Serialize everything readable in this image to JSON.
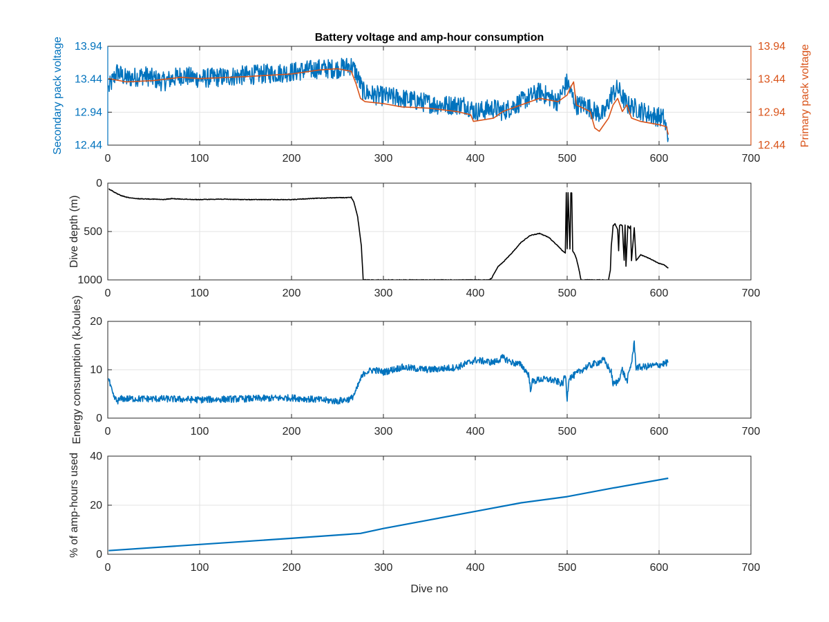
{
  "figure": {
    "title": "Battery voltage and amp-hour consumption",
    "xlabel": "Dive no"
  },
  "colors": {
    "secondary": "#0072BD",
    "primary": "#D95319",
    "depth": "#000000",
    "energy": "#0072BD",
    "amphours": "#0072BD",
    "grid": "#e3e3e3",
    "axis": "#262626"
  },
  "chart_data": [
    {
      "type": "line",
      "title": "Battery voltage and amp-hour consumption",
      "xlabel": "",
      "xlim": [
        0,
        700
      ],
      "xticks": [
        0,
        100,
        200,
        300,
        400,
        500,
        600,
        700
      ],
      "ylabel": "Secondary pack voltage",
      "ylim": [
        12.44,
        13.94
      ],
      "yticks": [
        12.44,
        12.94,
        13.44,
        13.94
      ],
      "ylabel_right": "Primary pack voltage",
      "ylim_right": [
        12.44,
        13.94
      ],
      "yticks_right": [
        12.44,
        12.94,
        13.44,
        13.94
      ],
      "grid": true,
      "series": [
        {
          "axis": "left",
          "noise": 0.15,
          "x": [
            1,
            10,
            20,
            40,
            60,
            80,
            100,
            150,
            200,
            230,
            250,
            265,
            270,
            278,
            290,
            320,
            360,
            390,
            400,
            420,
            430,
            450,
            470,
            490,
            500,
            505,
            510,
            520,
            530,
            540,
            548,
            555,
            565,
            575,
            590,
            605,
            610
          ],
          "y": [
            13.3,
            13.55,
            13.45,
            13.5,
            13.4,
            13.5,
            13.45,
            13.5,
            13.55,
            13.6,
            13.6,
            13.65,
            13.55,
            13.25,
            13.2,
            13.15,
            13.05,
            13.05,
            12.95,
            13.0,
            12.95,
            13.1,
            13.25,
            13.1,
            13.4,
            13.2,
            13.05,
            13.05,
            12.95,
            12.9,
            13.2,
            13.3,
            13.05,
            13.0,
            12.9,
            12.85,
            12.55
          ]
        },
        {
          "axis": "right",
          "noise": 0,
          "x": [
            1,
            20,
            50,
            80,
            100,
            150,
            200,
            230,
            250,
            265,
            270,
            275,
            280,
            300,
            320,
            350,
            380,
            395,
            398,
            420,
            430,
            450,
            470,
            490,
            500,
            503,
            507,
            510,
            525,
            530,
            535,
            545,
            550,
            555,
            560,
            565,
            570,
            580,
            600,
            608,
            610
          ],
          "y": [
            13.45,
            13.4,
            13.42,
            13.47,
            13.45,
            13.48,
            13.52,
            13.58,
            13.6,
            13.56,
            13.38,
            13.15,
            13.1,
            13.07,
            13.02,
            13.0,
            12.95,
            12.9,
            12.8,
            12.85,
            12.95,
            13.05,
            13.15,
            13.1,
            13.2,
            13.3,
            13.4,
            13.05,
            12.95,
            12.7,
            12.65,
            12.85,
            13.05,
            13.15,
            12.95,
            13.05,
            12.85,
            12.8,
            12.75,
            12.72,
            12.6
          ]
        }
      ]
    },
    {
      "type": "line",
      "xlabel": "",
      "xlim": [
        0,
        700
      ],
      "xticks": [
        0,
        100,
        200,
        300,
        400,
        500,
        600,
        700
      ],
      "ylabel": "Dive depth (m)",
      "ylim": [
        0,
        1000
      ],
      "yticks": [
        0,
        500,
        1000
      ],
      "yreversed": true,
      "grid": true,
      "series": [
        {
          "axis": "left",
          "noise": 3,
          "x": [
            1,
            5,
            10,
            15,
            20,
            30,
            50,
            60,
            70,
            80,
            100,
            120,
            150,
            180,
            200,
            230,
            250,
            260,
            265,
            268,
            272,
            276,
            278,
            280,
            300,
            350,
            400,
            415,
            418,
            420,
            425,
            430,
            440,
            450,
            460,
            470,
            480,
            490,
            495,
            498,
            499,
            500,
            501,
            503,
            504,
            505,
            506,
            508,
            510,
            513,
            515,
            520,
            545,
            547,
            548,
            549,
            550,
            552,
            555,
            556,
            557,
            558,
            560,
            562,
            563,
            564,
            566,
            568,
            569,
            570,
            573,
            575,
            580,
            590,
            600,
            605,
            610
          ],
          "y": [
            60,
            80,
            110,
            130,
            145,
            160,
            165,
            170,
            160,
            165,
            170,
            165,
            170,
            170,
            170,
            155,
            150,
            150,
            145,
            200,
            350,
            650,
            1000,
            1000,
            1000,
            1000,
            1000,
            1000,
            980,
            940,
            860,
            820,
            720,
            610,
            540,
            520,
            560,
            650,
            700,
            720,
            100,
            680,
            100,
            680,
            100,
            100,
            700,
            730,
            780,
            900,
            1000,
            1000,
            1000,
            900,
            650,
            550,
            440,
            420,
            480,
            700,
            440,
            430,
            440,
            800,
            430,
            860,
            440,
            470,
            440,
            800,
            460,
            800,
            740,
            780,
            830,
            840,
            880
          ]
        }
      ]
    },
    {
      "type": "line",
      "xlabel": "",
      "xlim": [
        0,
        700
      ],
      "xticks": [
        0,
        100,
        200,
        300,
        400,
        500,
        600,
        700
      ],
      "ylabel": "Energy consumption (kJoules)",
      "ylim": [
        0,
        20
      ],
      "yticks": [
        0,
        10,
        20
      ],
      "grid": true,
      "series": [
        {
          "axis": "left",
          "noise": 0.7,
          "x": [
            1,
            3,
            6,
            10,
            15,
            30,
            60,
            100,
            150,
            200,
            230,
            250,
            265,
            270,
            275,
            280,
            290,
            300,
            320,
            350,
            380,
            400,
            420,
            430,
            440,
            450,
            458,
            460,
            462,
            470,
            480,
            490,
            495,
            498,
            500,
            502,
            505,
            520,
            540,
            548,
            550,
            555,
            560,
            565,
            570,
            573,
            575,
            580,
            600,
            610
          ],
          "y": [
            8,
            6.5,
            4.5,
            3.5,
            4,
            4,
            4,
            3.8,
            4,
            4.2,
            3.8,
            3.5,
            4,
            5.5,
            8,
            9.5,
            10,
            9.5,
            10.5,
            10,
            10.5,
            12,
            11.5,
            12.5,
            11.5,
            11,
            9,
            6,
            7.5,
            8,
            8,
            7.5,
            7,
            9,
            4,
            8.5,
            8.5,
            10.5,
            12,
            9.5,
            7,
            7.5,
            10,
            7.5,
            11.5,
            15.5,
            10.5,
            10.5,
            11,
            11.5
          ]
        }
      ]
    },
    {
      "type": "line",
      "xlabel": "Dive no",
      "xlim": [
        0,
        700
      ],
      "xticks": [
        0,
        100,
        200,
        300,
        400,
        500,
        600,
        700
      ],
      "ylabel": "% of amp-hours used",
      "ylim": [
        0,
        40
      ],
      "yticks": [
        0,
        20,
        40
      ],
      "grid": true,
      "series": [
        {
          "axis": "left",
          "noise": 0,
          "x": [
            1,
            100,
            200,
            275,
            300,
            350,
            400,
            450,
            500,
            550,
            610
          ],
          "y": [
            1.5,
            4,
            6.5,
            8.5,
            10.5,
            14,
            17.5,
            21,
            23.5,
            27,
            31
          ]
        }
      ]
    }
  ]
}
